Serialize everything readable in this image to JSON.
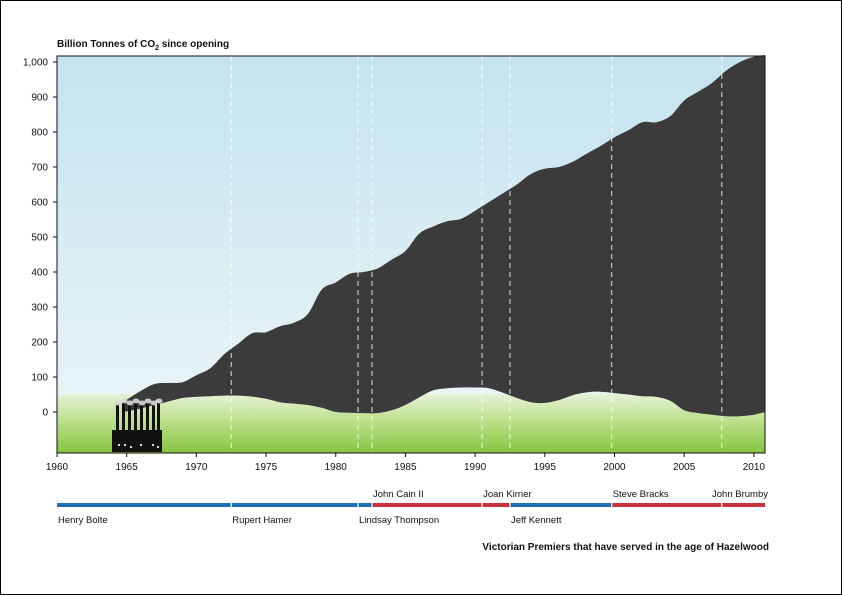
{
  "chart_data": {
    "type": "area",
    "title_prefix": "Billion Tonnes of CO",
    "title_sub": "2",
    "title_suffix": " since opening",
    "footer": "Victorian Premiers that have served in the age of Hazelwood",
    "y_ticks": [
      {
        "value": 1000,
        "label": "1,000"
      },
      {
        "value": 900,
        "label": "900"
      },
      {
        "value": 800,
        "label": "800"
      },
      {
        "value": 700,
        "label": "700"
      },
      {
        "value": 600,
        "label": "600"
      },
      {
        "value": 500,
        "label": "500"
      },
      {
        "value": 400,
        "label": "400"
      },
      {
        "value": 300,
        "label": "300"
      },
      {
        "value": 200,
        "label": "200"
      },
      {
        "value": 100,
        "label": "100"
      },
      {
        "value": 0,
        "label": "0"
      }
    ],
    "x_ticks": [
      1960,
      1965,
      1970,
      1975,
      1980,
      1985,
      1990,
      1995,
      2000,
      2005,
      2010
    ],
    "xlim": [
      1960,
      2010.8
    ],
    "ylim": [
      -115,
      1020
    ],
    "cumulative": {
      "x": [
        1964.8,
        1966,
        1967,
        1968,
        1969,
        1970,
        1971,
        1972,
        1973,
        1974,
        1975,
        1976,
        1977,
        1978,
        1979,
        1980,
        1981,
        1982,
        1983,
        1984,
        1985,
        1986,
        1987,
        1988,
        1989,
        1990,
        1991,
        1992,
        1993,
        1994,
        1995,
        1996,
        1997,
        1998,
        1999,
        2000,
        2001,
        2002,
        2003,
        2004,
        2005,
        2006,
        2007,
        2008,
        2009,
        2010,
        2010.8
      ],
      "values": [
        30,
        60,
        80,
        83,
        85,
        105,
        125,
        165,
        195,
        225,
        228,
        245,
        255,
        280,
        350,
        370,
        395,
        400,
        410,
        435,
        460,
        510,
        530,
        545,
        552,
        575,
        600,
        625,
        650,
        680,
        695,
        700,
        715,
        738,
        760,
        785,
        805,
        828,
        828,
        845,
        890,
        915,
        940,
        975,
        1000,
        1015,
        1020
      ]
    },
    "lower_edge": {
      "x": [
        1964.8,
        1966,
        1967,
        1968,
        1969,
        1970,
        1971,
        1972,
        1973,
        1974,
        1975,
        1976,
        1977,
        1978,
        1979,
        1980,
        1981,
        1982,
        1983,
        1984,
        1985,
        1986,
        1987,
        1988,
        1989,
        1990,
        1991,
        1992,
        1993,
        1994,
        1995,
        1996,
        1997,
        1998,
        1999,
        2000,
        2001,
        2002,
        2003,
        2004,
        2005,
        2006,
        2007,
        2008,
        2009,
        2010,
        2010.8
      ],
      "values": [
        0,
        10,
        20,
        30,
        40,
        43,
        45,
        47,
        47,
        44,
        38,
        28,
        24,
        20,
        12,
        0,
        -2,
        -3,
        -3,
        5,
        20,
        42,
        62,
        68,
        70,
        70,
        68,
        55,
        40,
        28,
        26,
        34,
        48,
        56,
        58,
        54,
        50,
        45,
        43,
        32,
        5,
        -3,
        -8,
        -12,
        -12,
        -8,
        0
      ]
    },
    "terms": [
      {
        "name": "Henry Bolte",
        "start": 1960,
        "end": 1972.5,
        "party": "liberal",
        "label_pos": "below",
        "color": "#1f6fb5"
      },
      {
        "name": "Rupert Hamer",
        "start": 1972.5,
        "end": 1981.6,
        "party": "liberal",
        "label_pos": "below",
        "color": "#1f6fb5"
      },
      {
        "name": "Lindsay Thompson",
        "start": 1981.6,
        "end": 1982.6,
        "party": "liberal",
        "label_pos": "below",
        "color": "#1f6fb5"
      },
      {
        "name": "John Cain II",
        "start": 1982.6,
        "end": 1990.5,
        "party": "labor",
        "label_pos": "above",
        "color": "#c8323c"
      },
      {
        "name": "Joan Kirner",
        "start": 1990.5,
        "end": 1992.5,
        "party": "labor",
        "label_pos": "above",
        "color": "#c8323c"
      },
      {
        "name": "Jeff Kennett",
        "start": 1992.5,
        "end": 1999.8,
        "party": "liberal",
        "label_pos": "below",
        "color": "#1f6fb5"
      },
      {
        "name": "Steve Bracks",
        "start": 1999.8,
        "end": 2007.7,
        "party": "labor",
        "label_pos": "above",
        "color": "#c8323c"
      },
      {
        "name": "John Brumby",
        "start": 2007.7,
        "end": 2010.8,
        "party": "labor",
        "label_pos": "above",
        "color": "#c8323c"
      }
    ],
    "colors": {
      "sky_top": "#c4e3ef",
      "sky_bottom": "#e8f4f6",
      "grass_top": "#e6f2d8",
      "grass_bottom": "#86c440",
      "smoke": "#3b3b3b",
      "factory": "#111111",
      "liberal": "#1f6fb5",
      "labor": "#c8323c"
    }
  }
}
